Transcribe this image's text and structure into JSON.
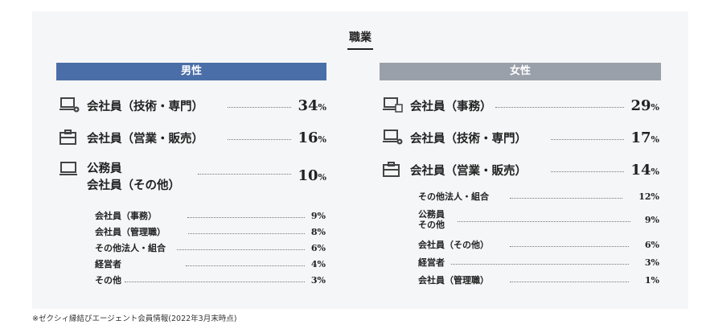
{
  "title": "職業",
  "male": {
    "header": "男性",
    "main": [
      {
        "icon": "laptop-gear-icon",
        "label": "会社員（技術・専門）",
        "value": "34",
        "unit": "%"
      },
      {
        "icon": "briefcase-icon",
        "label": "会社員（営業・販売）",
        "value": "16",
        "unit": "%"
      },
      {
        "icon": "laptop-icon",
        "label_line1": "公務員",
        "label_line2": "会社員（その他）",
        "value": "10",
        "unit": "%"
      }
    ],
    "sub": [
      {
        "label": "会社員（事務）",
        "value": "9%"
      },
      {
        "label": "会社員（管理職）",
        "value": "8%"
      },
      {
        "label": "その他法人・組合",
        "value": "6%"
      },
      {
        "label": "経営者",
        "value": "4%"
      },
      {
        "label": "その他",
        "value": "3%"
      }
    ]
  },
  "female": {
    "header": "女性",
    "main": [
      {
        "icon": "laptop-document-icon",
        "label": "会社員（事務）",
        "value": "29",
        "unit": "%"
      },
      {
        "icon": "laptop-gear-icon",
        "label": "会社員（技術・専門）",
        "value": "17",
        "unit": "%"
      },
      {
        "icon": "briefcase-icon",
        "label": "会社員（営業・販売）",
        "value": "14",
        "unit": "%"
      }
    ],
    "sub": [
      {
        "label": "その他法人・組合",
        "value": "12%"
      },
      {
        "label_line1": "公務員",
        "label_line2": "その他",
        "value": "9%"
      },
      {
        "label": "会社員（その他）",
        "value": "6%"
      },
      {
        "label": "経営者",
        "value": "3%"
      },
      {
        "label": "会社員（管理職）",
        "value": "1%"
      }
    ]
  },
  "footnote": "※ゼクシィ縁結びエージェント会員情報(2022年3月末時点)",
  "colors": {
    "male_header": "#4a6ea8",
    "female_header": "#9aa0aa",
    "panel": "#f5f6f7"
  }
}
